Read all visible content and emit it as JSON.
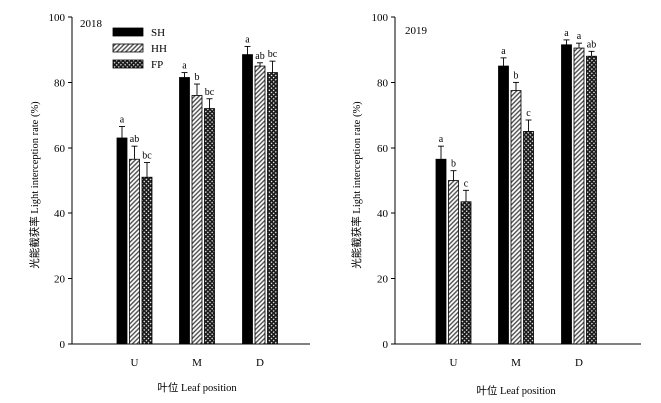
{
  "chart_data": [
    {
      "type": "bar",
      "title": "2018",
      "categories": [
        "U",
        "M",
        "D"
      ],
      "xlabel": "叶位 Leaf position",
      "ylabel": "光能截获率 Light interception rate (%)",
      "ylim": [
        0,
        100
      ],
      "yticks": [
        0,
        20,
        40,
        60,
        80,
        100
      ],
      "grid": false,
      "legend": "top-left",
      "series": [
        {
          "name": "SH",
          "fill": "solid",
          "color": "#000000",
          "values": [
            63,
            81.5,
            88.5
          ],
          "errors": [
            3.5,
            1.5,
            2.5
          ],
          "letters": [
            "a",
            "a",
            "a"
          ]
        },
        {
          "name": "HH",
          "fill": "hatch",
          "color": "#4d4d4d",
          "values": [
            56.5,
            76,
            85
          ],
          "errors": [
            4,
            3.5,
            1
          ],
          "letters": [
            "ab",
            "b",
            "ab"
          ]
        },
        {
          "name": "FP",
          "fill": "crosshatch",
          "color": "#1a1a1a",
          "values": [
            51,
            72,
            83
          ],
          "errors": [
            4.5,
            3,
            3.5
          ],
          "letters": [
            "bc",
            "bc",
            "bc"
          ]
        }
      ]
    },
    {
      "type": "bar",
      "title": "2019",
      "categories": [
        "U",
        "M",
        "D"
      ],
      "xlabel": "叶位 Leaf position",
      "ylabel": "光能截获率 Light interception rate (%)",
      "ylim": [
        0,
        100
      ],
      "yticks": [
        0,
        20,
        40,
        60,
        80,
        100
      ],
      "grid": false,
      "legend": "none",
      "series": [
        {
          "name": "SH",
          "fill": "solid",
          "color": "#000000",
          "values": [
            56.5,
            85,
            91.5
          ],
          "errors": [
            4,
            2.5,
            1.5
          ],
          "letters": [
            "a",
            "a",
            "a"
          ]
        },
        {
          "name": "HH",
          "fill": "hatch",
          "color": "#4d4d4d",
          "values": [
            50,
            77.5,
            90.5
          ],
          "errors": [
            3,
            2.5,
            1.5
          ],
          "letters": [
            "b",
            "b",
            "a"
          ]
        },
        {
          "name": "FP",
          "fill": "crosshatch",
          "color": "#1a1a1a",
          "values": [
            43.5,
            65,
            88
          ],
          "errors": [
            3.5,
            3.5,
            1.5
          ],
          "letters": [
            "c",
            "c",
            "ab"
          ]
        }
      ]
    }
  ]
}
